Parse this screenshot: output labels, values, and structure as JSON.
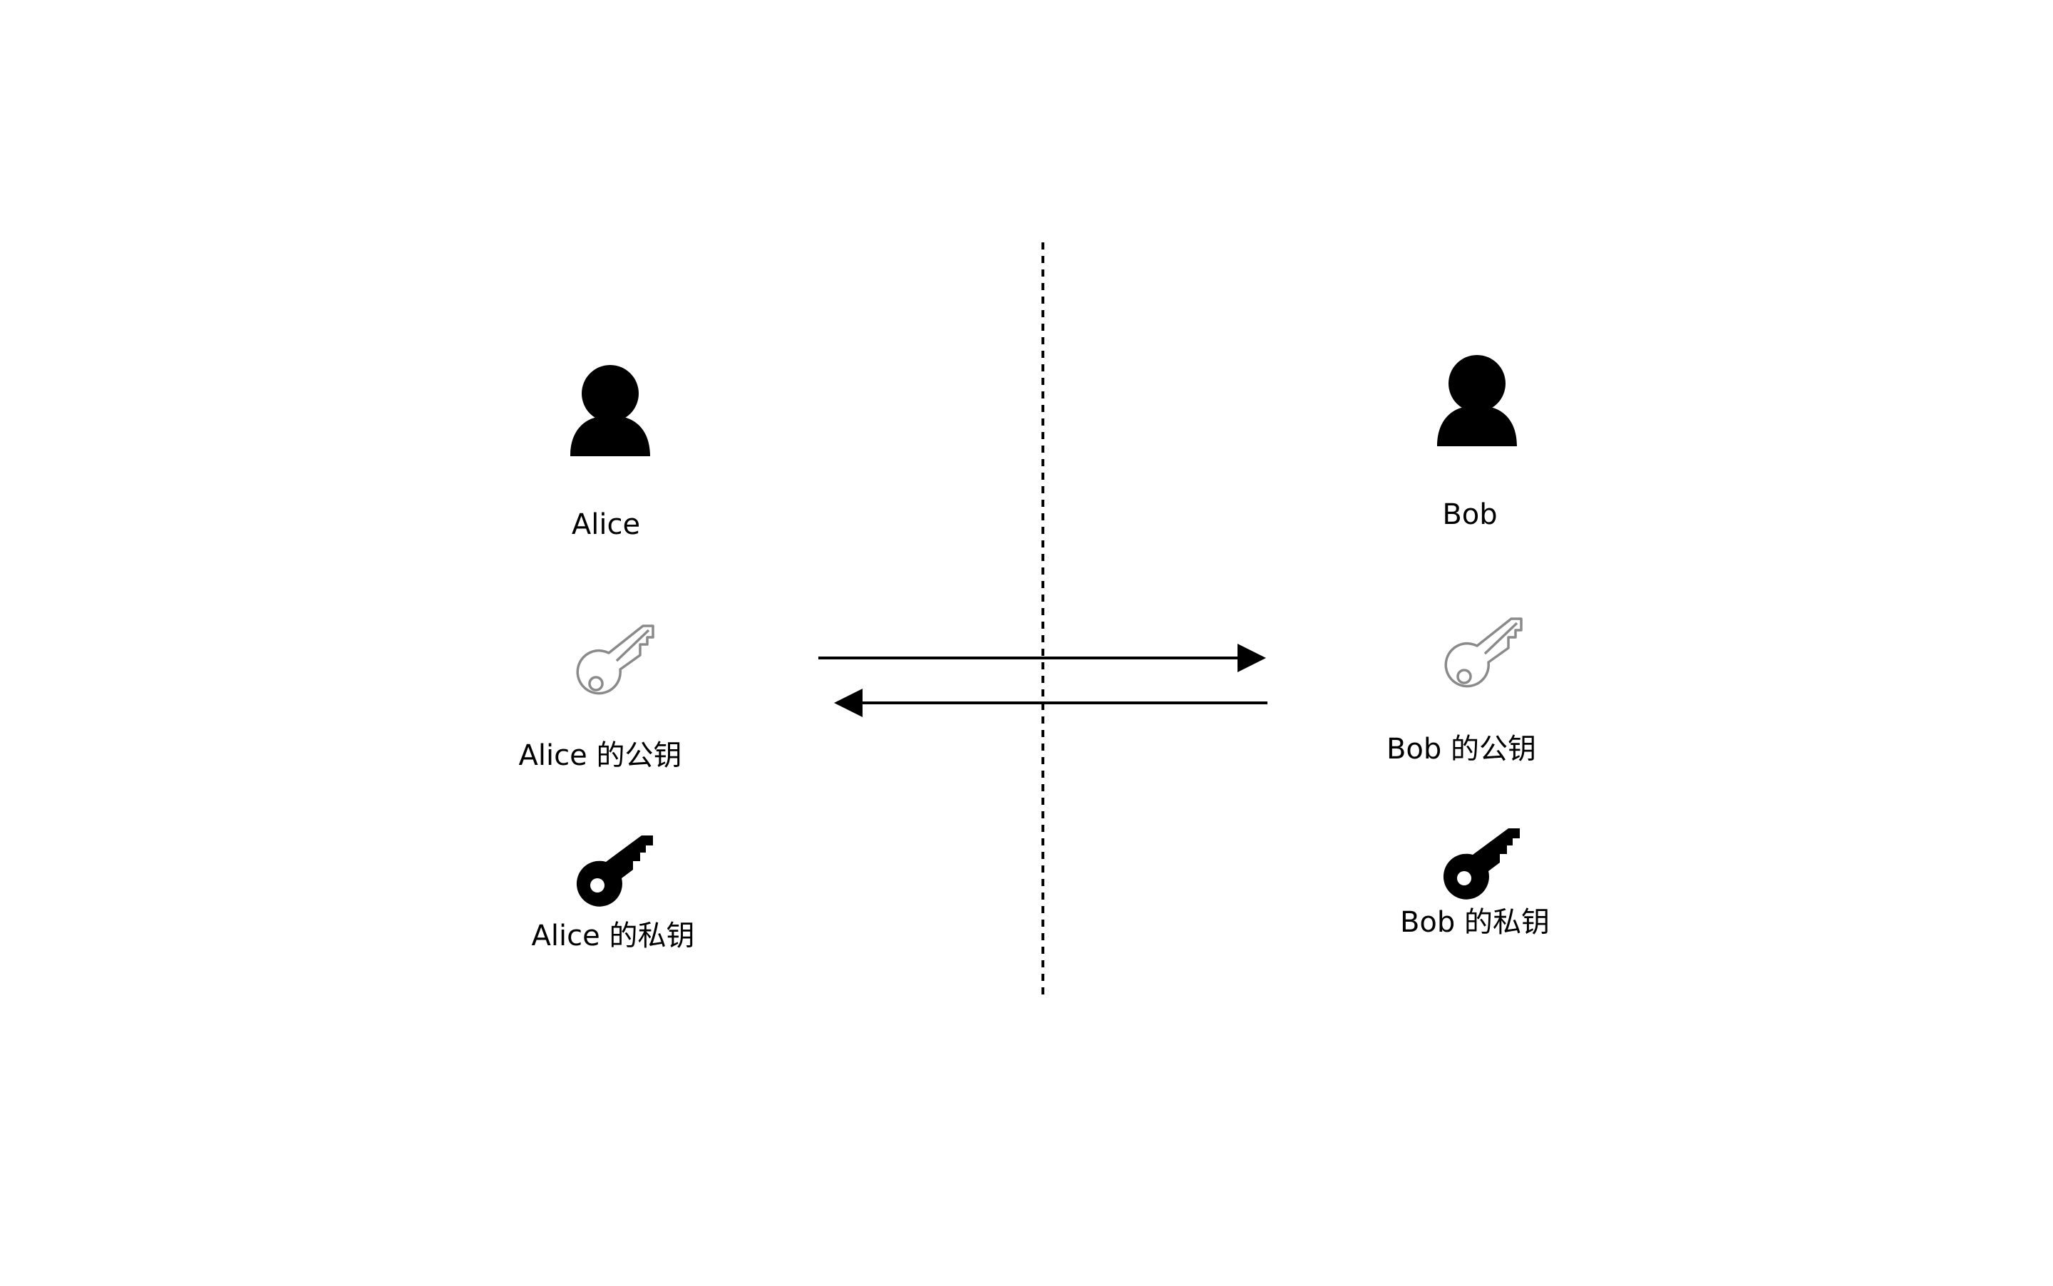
{
  "alice": {
    "name": "Alice",
    "public_key_label": "Alice 的公钥",
    "private_key_label": "Alice 的私钥"
  },
  "bob": {
    "name": "Bob",
    "public_key_label": "Bob 的公钥",
    "private_key_label": "Bob 的私钥"
  },
  "icons": {
    "person": "person-icon",
    "public_key": "outline-key-icon",
    "private_key": "solid-key-icon",
    "arrow": "arrow-icon"
  },
  "colors": {
    "public_key": "#8a8a8a",
    "private_key": "#000000",
    "person": "#000000",
    "line": "#000000"
  }
}
